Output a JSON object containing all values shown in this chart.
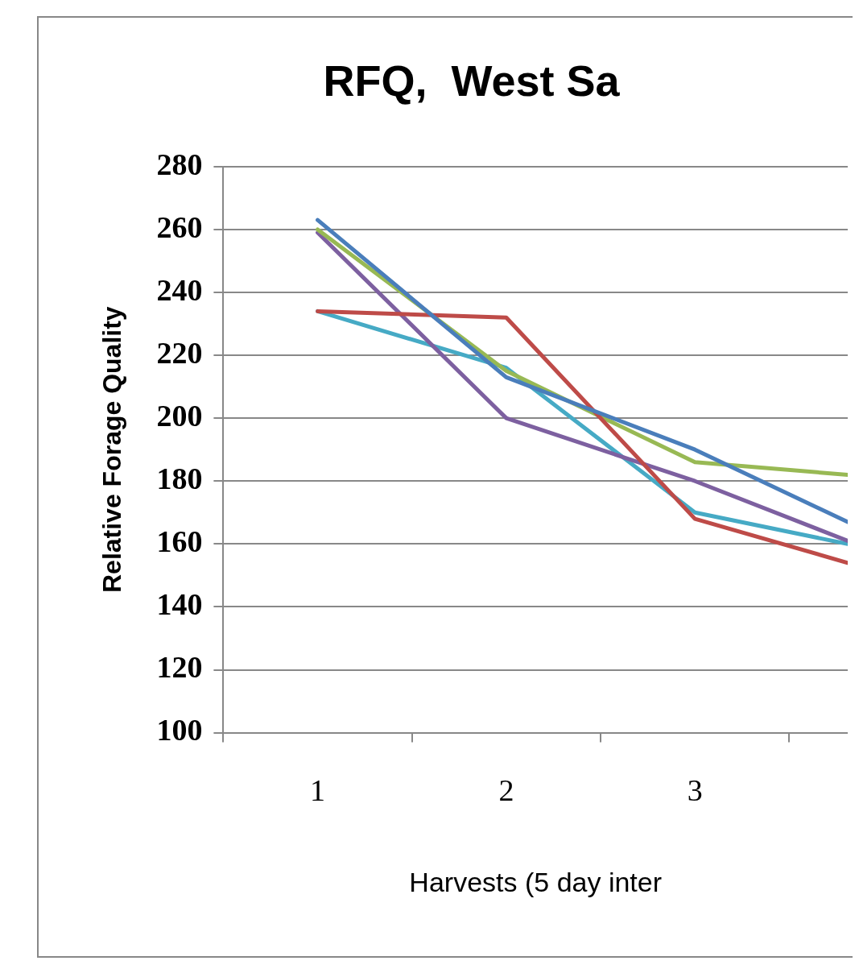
{
  "chart_data": {
    "type": "line",
    "title": "RFQ,  West Sa",
    "xlabel": "Harvests (5 day inter",
    "ylabel": "Relative Forage Quality",
    "x": [
      1,
      2,
      3,
      3.81
    ],
    "xlim": [
      0.5,
      3.81
    ],
    "xticks": [
      {
        "value": 0.5,
        "label": null
      },
      {
        "value": 1,
        "label": "1"
      },
      {
        "value": 1.5,
        "label": null
      },
      {
        "value": 2,
        "label": "2"
      },
      {
        "value": 2.5,
        "label": null
      },
      {
        "value": 3,
        "label": "3"
      },
      {
        "value": 3.5,
        "label": null
      }
    ],
    "ylim": [
      100,
      280
    ],
    "yticks": [
      100,
      120,
      140,
      160,
      180,
      200,
      220,
      240,
      260,
      280
    ],
    "series": [
      {
        "color": "#4a7ebb",
        "values": [
          263,
          213,
          190,
          167
        ]
      },
      {
        "color": "#be4b48",
        "values": [
          234,
          232,
          168,
          154
        ]
      },
      {
        "color": "#98b954",
        "values": [
          260,
          215,
          186,
          182
        ]
      },
      {
        "color": "#7d60a0",
        "values": [
          259,
          200,
          180,
          161
        ]
      },
      {
        "color": "#46aac5",
        "values": [
          234,
          216,
          170,
          160
        ]
      }
    ],
    "grid": "y",
    "legend": false,
    "marker": "none",
    "line_style": "solid"
  }
}
